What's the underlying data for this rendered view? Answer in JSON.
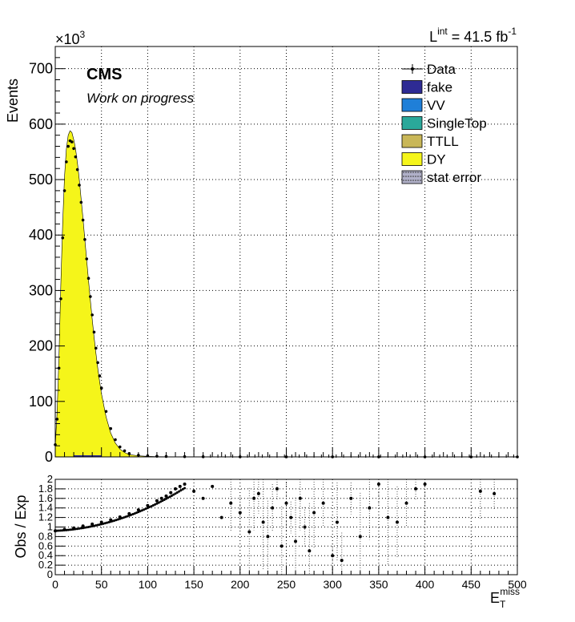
{
  "header": {
    "lumi_prefix": "L",
    "lumi_superscript": "int",
    "lumi_value": " = 41.5 fb",
    "lumi_unit_exp": "-1",
    "exponent_base": "×10",
    "exponent_power": "3"
  },
  "labels": {
    "cms": "CMS",
    "subtitle": "Work on progress"
  },
  "chart_data": [
    {
      "type": "histogram",
      "panel": "main",
      "ylabel": "Events",
      "y_scale_note": "×10^3",
      "xlim": [
        0,
        500
      ],
      "ylim": [
        0,
        740
      ],
      "yticks": [
        0,
        100,
        200,
        300,
        400,
        500,
        600,
        700
      ],
      "xticks": [
        0,
        50,
        100,
        150,
        200,
        250,
        300,
        350,
        400,
        450,
        500
      ],
      "grid": true,
      "legend_position": "top-right",
      "legend": [
        "Data",
        "fake",
        "VV",
        "SingleTop",
        "TTLL",
        "DY",
        "stat error"
      ],
      "colors": {
        "fake": "#2e2b94",
        "VV": "#1f7fd8",
        "SingleTop": "#2aa89a",
        "TTLL": "#c9b758",
        "DY": "#f5f51a",
        "stat_error": "#6a6a8a"
      },
      "x": [
        0,
        2,
        4,
        6,
        8,
        10,
        12,
        14,
        16,
        18,
        20,
        22,
        24,
        26,
        28,
        30,
        32,
        34,
        36,
        38,
        40,
        42,
        44,
        46,
        48,
        50,
        55,
        60,
        65,
        70,
        75,
        80,
        90,
        100,
        110,
        120,
        140,
        160,
        200,
        250,
        300,
        350,
        400,
        450,
        500
      ],
      "mc_dy": [
        20,
        80,
        180,
        310,
        420,
        505,
        555,
        580,
        588,
        585,
        572,
        555,
        530,
        500,
        465,
        430,
        392,
        355,
        318,
        282,
        248,
        216,
        187,
        160,
        136,
        114,
        72,
        43,
        25,
        14,
        8,
        4,
        2,
        1,
        0.5,
        0.3,
        0.1,
        0,
        0,
        0,
        0,
        0,
        0,
        0,
        0
      ],
      "data": [
        22,
        68,
        160,
        285,
        395,
        480,
        532,
        560,
        570,
        568,
        556,
        541,
        518,
        490,
        459,
        427,
        392,
        357,
        322,
        289,
        256,
        225,
        196,
        170,
        146,
        124,
        82,
        51,
        31,
        18,
        11,
        6,
        3,
        2,
        1.2,
        0.8,
        0.4,
        0.2,
        0.1,
        0.05,
        0.03,
        0.02,
        0.01,
        0.01,
        0
      ]
    },
    {
      "type": "scatter",
      "panel": "ratio",
      "ylabel": "Obs / Exp",
      "xlabel": "E_T^miss",
      "xlim": [
        0,
        500
      ],
      "ylim": [
        0,
        2
      ],
      "yticks": [
        0,
        0.2,
        0.4,
        0.6,
        0.8,
        1,
        1.2,
        1.4,
        1.6,
        1.8,
        2
      ],
      "ytick_labels": [
        "0",
        "0.2",
        "0.4",
        "0.6",
        "0.8",
        "1",
        "1.2",
        "1.4",
        "1.6",
        "1.8",
        "2"
      ],
      "x": [
        0,
        10,
        20,
        30,
        40,
        50,
        60,
        70,
        80,
        90,
        100,
        110,
        115,
        120,
        125,
        130,
        135,
        140,
        150,
        160,
        170,
        180,
        190,
        200,
        210,
        215,
        220,
        225,
        230,
        235,
        240,
        245,
        250,
        255,
        260,
        265,
        270,
        275,
        280,
        290,
        300,
        305,
        310,
        320,
        330,
        340,
        350,
        360,
        370,
        380,
        390,
        400,
        460,
        475
      ],
      "y": [
        0.92,
        0.95,
        0.98,
        1.02,
        1.06,
        1.1,
        1.15,
        1.21,
        1.28,
        1.36,
        1.45,
        1.55,
        1.6,
        1.65,
        1.72,
        1.8,
        1.85,
        1.9,
        1.75,
        1.6,
        1.85,
        1.2,
        1.5,
        1.3,
        0.9,
        1.6,
        1.7,
        1.1,
        0.8,
        1.4,
        1.8,
        0.6,
        1.5,
        1.2,
        0.7,
        1.6,
        1.0,
        0.5,
        1.3,
        1.5,
        0.4,
        1.1,
        0.3,
        1.6,
        0.8,
        1.4,
        1.9,
        1.2,
        1.1,
        1.5,
        1.8,
        1.9,
        1.75,
        1.7
      ]
    }
  ]
}
